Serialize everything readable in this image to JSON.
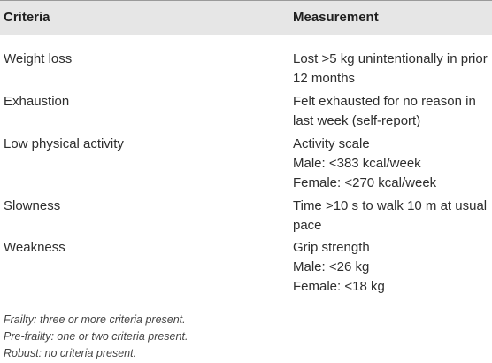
{
  "table": {
    "headers": {
      "criteria": "Criteria",
      "measurement": "Measurement"
    },
    "rows": [
      {
        "criteria": "Weight loss",
        "measurement": [
          "Lost >5 kg unintentionally in prior",
          "12 months"
        ]
      },
      {
        "criteria": "Exhaustion",
        "measurement": [
          "Felt exhausted for no reason in",
          "last week (self-report)"
        ]
      },
      {
        "criteria": "Low physical activity",
        "measurement": [
          "Activity scale",
          "Male: <383 kcal/week",
          "Female: <270 kcal/week"
        ]
      },
      {
        "criteria": "Slowness",
        "measurement": [
          "Time >10 s to walk 10 m at usual",
          "pace"
        ]
      },
      {
        "criteria": "Weakness",
        "measurement": [
          "Grip strength",
          "Male: <26 kg",
          "Female: <18 kg"
        ]
      }
    ]
  },
  "notes": [
    "Frailty: three or more criteria present.",
    "Pre-frailty: one or two criteria present.",
    "Robust: no criteria present."
  ]
}
